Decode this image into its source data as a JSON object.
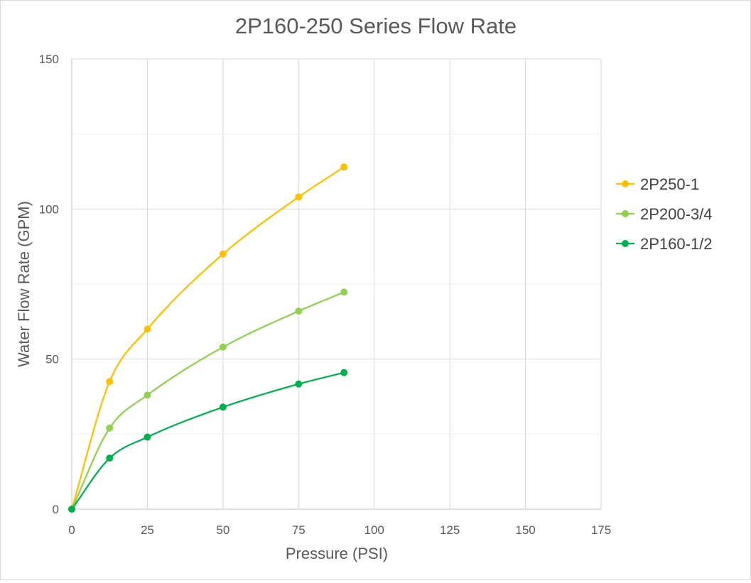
{
  "chart_data": {
    "type": "scatter",
    "title": "2P160-250 Series Flow Rate",
    "xlabel": "Pressure (PSI)",
    "ylabel": "Water Flow Rate (GPM)",
    "xlim": [
      0,
      175
    ],
    "ylim": [
      0,
      150
    ],
    "x_ticks": [
      0,
      25,
      50,
      75,
      100,
      125,
      150,
      175
    ],
    "y_ticks": [
      0,
      50,
      100,
      150
    ],
    "x_tick_labels": [
      "0",
      "25",
      "50",
      "75",
      "100",
      "125",
      "150",
      "175"
    ],
    "y_tick_labels": [
      "0",
      "50",
      "100",
      "150"
    ],
    "y_minor_gridlines": [
      25,
      75,
      125
    ],
    "grid": true,
    "smooth_lines": true,
    "legend_position": "right",
    "series": [
      {
        "name": "2P250-1",
        "color": "#FFC000",
        "x": [
          0,
          12.5,
          25,
          50,
          75,
          90
        ],
        "y": [
          0,
          42.5,
          60,
          85,
          104,
          114
        ]
      },
      {
        "name": "2P200-3/4",
        "color": "#92D050",
        "x": [
          0,
          12.5,
          25,
          50,
          75,
          90
        ],
        "y": [
          0,
          27,
          38,
          54,
          66,
          72.3
        ]
      },
      {
        "name": "2P160-1/2",
        "color": "#00B050",
        "x": [
          0,
          12.5,
          25,
          50,
          75,
          90
        ],
        "y": [
          0,
          17,
          24,
          34,
          41.7,
          45.5
        ]
      }
    ]
  }
}
